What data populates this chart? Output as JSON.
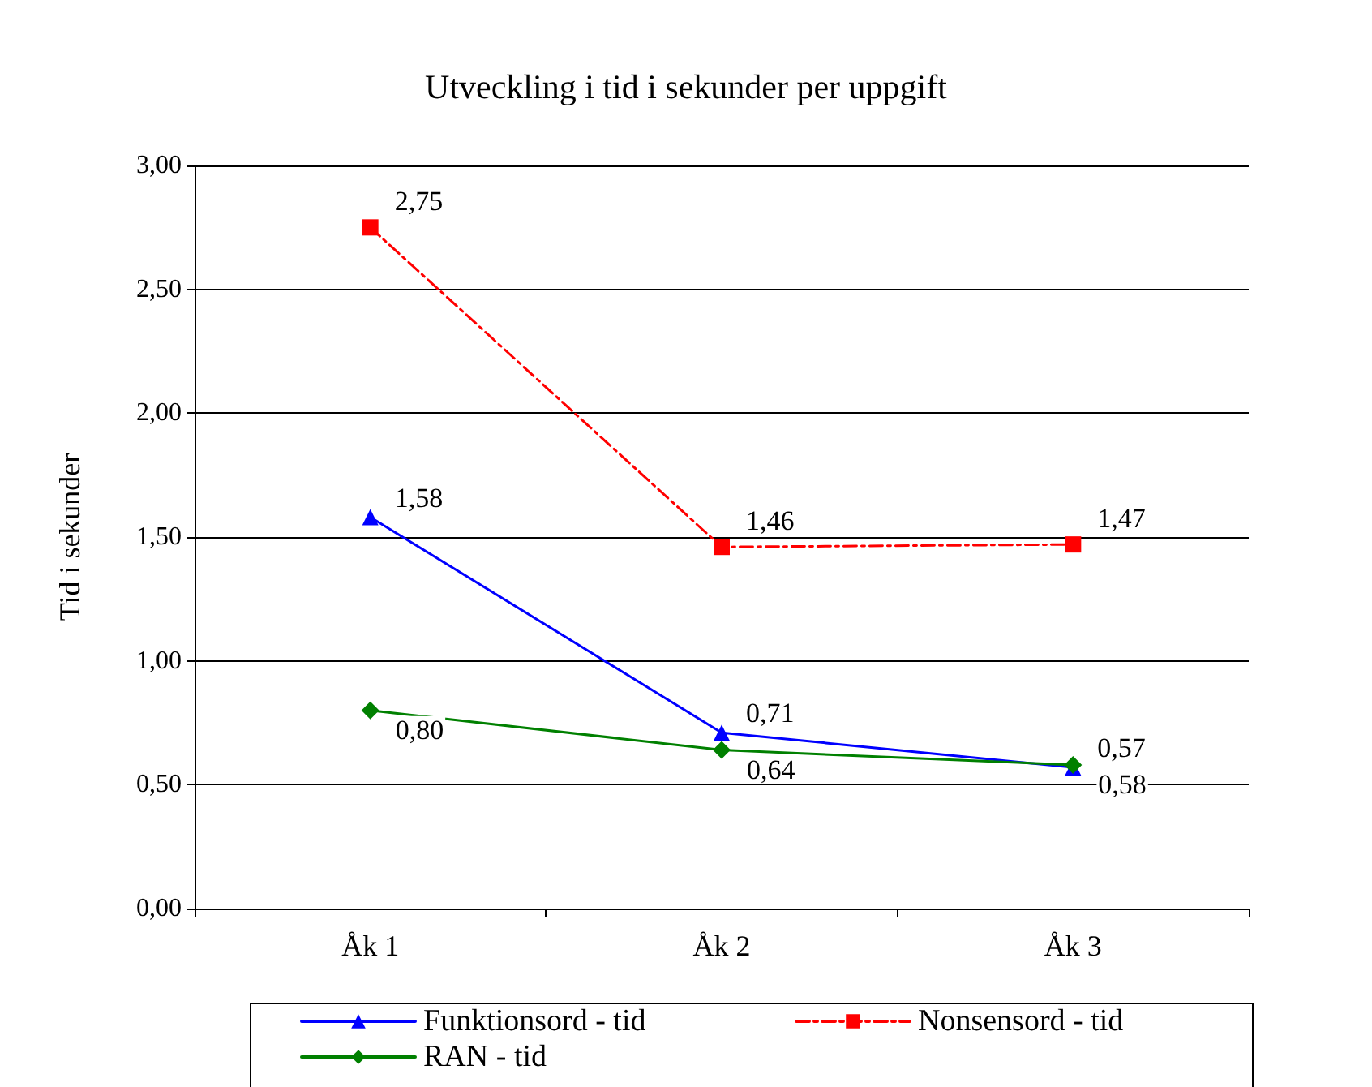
{
  "chart_data": {
    "type": "line",
    "title": "Utveckling i tid i sekunder per uppgift",
    "ylabel": "Tid i sekunder",
    "categories": [
      "Åk 1",
      "Åk 2",
      "Åk 3"
    ],
    "series": [
      {
        "name": "Funktionsord - tid",
        "color": "#0000ff",
        "values": [
          1.58,
          0.71,
          0.57
        ],
        "value_labels": [
          "1,58",
          "0,71",
          "0,57"
        ],
        "marker": "triangle",
        "line_style": "solid"
      },
      {
        "name": "Nonsensord - tid",
        "color": "#ff0000",
        "values": [
          2.75,
          1.46,
          1.47
        ],
        "value_labels": [
          "2,75",
          "1,46",
          "1,47"
        ],
        "marker": "square",
        "line_style": "dashed"
      },
      {
        "name": "RAN - tid",
        "color": "#008000",
        "values": [
          0.8,
          0.64,
          0.58
        ],
        "value_labels": [
          "0,80",
          "0,64",
          "0,58"
        ],
        "marker": "diamond",
        "line_style": "solid"
      }
    ],
    "ylim": [
      0,
      3
    ],
    "yticks": [
      {
        "value": 0,
        "label": "0,00"
      },
      {
        "value": 0.5,
        "label": "0,50"
      },
      {
        "value": 1,
        "label": "1,00"
      },
      {
        "value": 1.5,
        "label": "1,50"
      },
      {
        "value": 2,
        "label": "2,00"
      },
      {
        "value": 2.5,
        "label": "2,50"
      },
      {
        "value": 3,
        "label": "3,00"
      }
    ],
    "grid": "y",
    "legend": "bottom"
  }
}
